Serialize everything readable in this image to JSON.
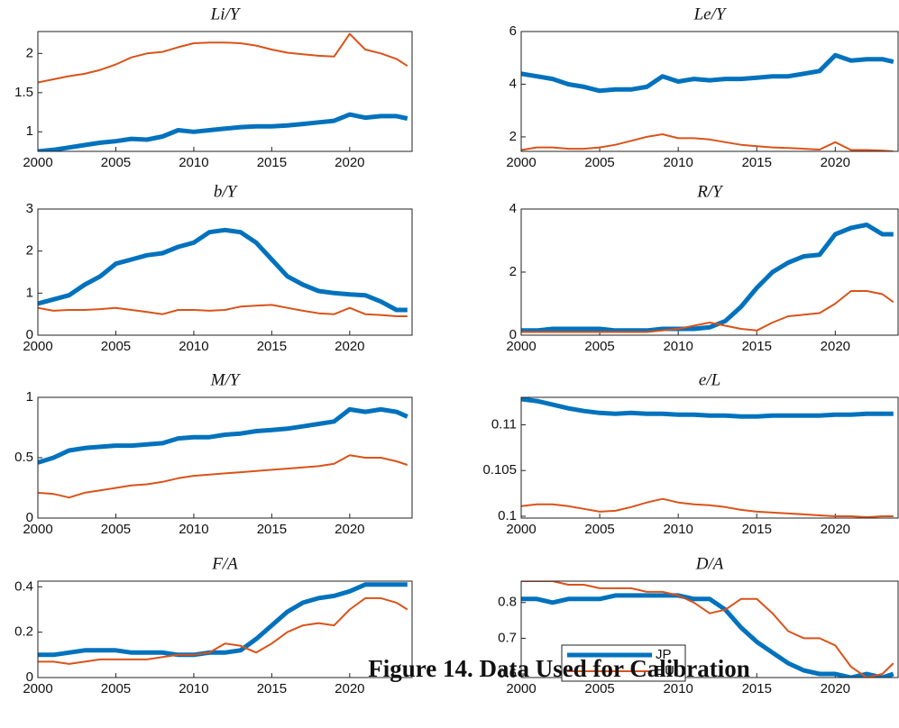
{
  "caption": "Figure 14. Data Used for Calibration",
  "chart_data": [
    {
      "type": "line",
      "title": "Li/Y",
      "xlim": [
        2000,
        2024
      ],
      "xticks": [
        2000,
        2005,
        2010,
        2015,
        2020
      ],
      "ylim": [
        0.75,
        2.28
      ],
      "yticks": [
        1,
        1.5,
        2
      ],
      "x": [
        2000,
        2001,
        2002,
        2003,
        2004,
        2005,
        2006,
        2007,
        2008,
        2009,
        2010,
        2011,
        2012,
        2013,
        2014,
        2015,
        2016,
        2017,
        2018,
        2019,
        2020,
        2021,
        2022,
        2023,
        2023.7
      ],
      "series": [
        {
          "name": "JP",
          "color": "#0072bd",
          "values": [
            0.75,
            0.77,
            0.8,
            0.83,
            0.86,
            0.88,
            0.91,
            0.9,
            0.94,
            1.02,
            1.0,
            1.02,
            1.04,
            1.06,
            1.07,
            1.07,
            1.08,
            1.1,
            1.12,
            1.14,
            1.22,
            1.18,
            1.2,
            1.2,
            1.17
          ]
        },
        {
          "name": "EU",
          "color": "#d95319",
          "values": [
            1.63,
            1.67,
            1.71,
            1.74,
            1.79,
            1.86,
            1.95,
            2.0,
            2.02,
            2.08,
            2.13,
            2.14,
            2.14,
            2.13,
            2.1,
            2.05,
            2.01,
            1.99,
            1.97,
            1.96,
            2.25,
            2.05,
            2.0,
            1.93,
            1.84
          ]
        }
      ]
    },
    {
      "type": "line",
      "title": "Le/Y",
      "xlim": [
        2000,
        2024
      ],
      "xticks": [
        2000,
        2005,
        2010,
        2015,
        2020
      ],
      "ylim": [
        1.45,
        6
      ],
      "yticks": [
        2,
        4,
        6
      ],
      "x": [
        2000,
        2001,
        2002,
        2003,
        2004,
        2005,
        2006,
        2007,
        2008,
        2009,
        2010,
        2011,
        2012,
        2013,
        2014,
        2015,
        2016,
        2017,
        2018,
        2019,
        2020,
        2021,
        2022,
        2023,
        2023.7
      ],
      "series": [
        {
          "name": "JP",
          "color": "#0072bd",
          "values": [
            4.4,
            4.3,
            4.2,
            4.0,
            3.9,
            3.75,
            3.8,
            3.8,
            3.9,
            4.3,
            4.1,
            4.2,
            4.15,
            4.2,
            4.2,
            4.25,
            4.3,
            4.3,
            4.4,
            4.5,
            5.1,
            4.9,
            4.95,
            4.95,
            4.85
          ]
        },
        {
          "name": "EU",
          "color": "#d95319",
          "values": [
            1.5,
            1.6,
            1.6,
            1.55,
            1.55,
            1.6,
            1.7,
            1.85,
            2.0,
            2.1,
            1.95,
            1.95,
            1.9,
            1.8,
            1.7,
            1.65,
            1.6,
            1.58,
            1.55,
            1.52,
            1.8,
            1.5,
            1.5,
            1.48,
            1.45
          ]
        }
      ]
    },
    {
      "type": "line",
      "title": "b/Y",
      "xlim": [
        2000,
        2024
      ],
      "xticks": [
        2000,
        2005,
        2010,
        2015,
        2020
      ],
      "ylim": [
        0,
        3
      ],
      "yticks": [
        0,
        1,
        2,
        3
      ],
      "x": [
        2000,
        2001,
        2002,
        2003,
        2004,
        2005,
        2006,
        2007,
        2008,
        2009,
        2010,
        2011,
        2012,
        2013,
        2014,
        2015,
        2016,
        2017,
        2018,
        2019,
        2020,
        2021,
        2022,
        2023,
        2023.7
      ],
      "series": [
        {
          "name": "JP",
          "color": "#0072bd",
          "values": [
            0.75,
            0.85,
            0.95,
            1.2,
            1.4,
            1.7,
            1.8,
            1.9,
            1.95,
            2.1,
            2.2,
            2.45,
            2.5,
            2.45,
            2.2,
            1.8,
            1.4,
            1.2,
            1.05,
            1.0,
            0.97,
            0.95,
            0.8,
            0.6,
            0.6
          ]
        },
        {
          "name": "EU",
          "color": "#d95319",
          "values": [
            0.65,
            0.58,
            0.6,
            0.6,
            0.62,
            0.65,
            0.6,
            0.55,
            0.5,
            0.6,
            0.6,
            0.58,
            0.6,
            0.68,
            0.7,
            0.72,
            0.65,
            0.58,
            0.52,
            0.5,
            0.65,
            0.5,
            0.48,
            0.45,
            0.45
          ]
        }
      ]
    },
    {
      "type": "line",
      "title": "R/Y",
      "xlim": [
        2000,
        2024
      ],
      "xticks": [
        2000,
        2005,
        2010,
        2015,
        2020
      ],
      "ylim": [
        0,
        4
      ],
      "yticks": [
        0,
        2,
        4
      ],
      "x": [
        2000,
        2001,
        2002,
        2003,
        2004,
        2005,
        2006,
        2007,
        2008,
        2009,
        2010,
        2011,
        2012,
        2013,
        2014,
        2015,
        2016,
        2017,
        2018,
        2019,
        2020,
        2021,
        2022,
        2023,
        2023.7
      ],
      "series": [
        {
          "name": "JP",
          "color": "#0072bd",
          "values": [
            0.15,
            0.15,
            0.2,
            0.2,
            0.2,
            0.2,
            0.15,
            0.15,
            0.15,
            0.2,
            0.2,
            0.2,
            0.25,
            0.45,
            0.9,
            1.5,
            2.0,
            2.3,
            2.5,
            2.55,
            3.2,
            3.4,
            3.5,
            3.2,
            3.2
          ]
        },
        {
          "name": "EU",
          "color": "#d95319",
          "values": [
            0.1,
            0.1,
            0.1,
            0.1,
            0.1,
            0.1,
            0.1,
            0.1,
            0.1,
            0.15,
            0.2,
            0.3,
            0.4,
            0.3,
            0.2,
            0.15,
            0.4,
            0.6,
            0.65,
            0.7,
            1.0,
            1.4,
            1.4,
            1.3,
            1.05
          ]
        }
      ]
    },
    {
      "type": "line",
      "title": "M/Y",
      "xlim": [
        2000,
        2024
      ],
      "xticks": [
        2000,
        2005,
        2010,
        2015,
        2020
      ],
      "ylim": [
        0,
        1
      ],
      "yticks": [
        0,
        0.5,
        1
      ],
      "x": [
        2000,
        2001,
        2002,
        2003,
        2004,
        2005,
        2006,
        2007,
        2008,
        2009,
        2010,
        2011,
        2012,
        2013,
        2014,
        2015,
        2016,
        2017,
        2018,
        2019,
        2020,
        2021,
        2022,
        2023,
        2023.7
      ],
      "series": [
        {
          "name": "JP",
          "color": "#0072bd",
          "values": [
            0.46,
            0.5,
            0.56,
            0.58,
            0.59,
            0.6,
            0.6,
            0.61,
            0.62,
            0.66,
            0.67,
            0.67,
            0.69,
            0.7,
            0.72,
            0.73,
            0.74,
            0.76,
            0.78,
            0.8,
            0.9,
            0.88,
            0.9,
            0.88,
            0.84
          ]
        },
        {
          "name": "EU",
          "color": "#d95319",
          "values": [
            0.21,
            0.2,
            0.17,
            0.21,
            0.23,
            0.25,
            0.27,
            0.28,
            0.3,
            0.33,
            0.35,
            0.36,
            0.37,
            0.38,
            0.39,
            0.4,
            0.41,
            0.42,
            0.43,
            0.45,
            0.52,
            0.5,
            0.5,
            0.47,
            0.44
          ]
        }
      ]
    },
    {
      "type": "line",
      "title": "e/L",
      "xlim": [
        2000,
        2024
      ],
      "xticks": [
        2000,
        2005,
        2010,
        2015,
        2020
      ],
      "ylim": [
        0.0998,
        0.113
      ],
      "yticks": [
        0.1,
        0.105,
        0.11
      ],
      "x": [
        2000,
        2001,
        2002,
        2003,
        2004,
        2005,
        2006,
        2007,
        2008,
        2009,
        2010,
        2011,
        2012,
        2013,
        2014,
        2015,
        2016,
        2017,
        2018,
        2019,
        2020,
        2021,
        2022,
        2023,
        2023.7
      ],
      "series": [
        {
          "name": "JP",
          "color": "#0072bd",
          "values": [
            0.1128,
            0.1126,
            0.1122,
            0.1118,
            0.1115,
            0.1113,
            0.1112,
            0.1113,
            0.1112,
            0.1112,
            0.1111,
            0.1111,
            0.111,
            0.111,
            0.1109,
            0.1109,
            0.111,
            0.111,
            0.111,
            0.111,
            0.1111,
            0.1111,
            0.1112,
            0.1112,
            0.1112
          ]
        },
        {
          "name": "EU",
          "color": "#d95319",
          "values": [
            0.1011,
            0.1013,
            0.1013,
            0.1011,
            0.1008,
            0.1005,
            0.1006,
            0.101,
            0.1015,
            0.1019,
            0.1015,
            0.1013,
            0.1012,
            0.101,
            0.1007,
            0.1005,
            0.1004,
            0.1003,
            0.1002,
            0.1001,
            0.1,
            0.1,
            0.0999,
            0.1,
            0.1
          ]
        }
      ]
    },
    {
      "type": "line",
      "title": "F/A",
      "xlim": [
        2000,
        2024
      ],
      "xticks": [
        2000,
        2005,
        2010,
        2015,
        2020
      ],
      "ylim": [
        0,
        0.425
      ],
      "yticks": [
        0,
        0.2,
        0.4
      ],
      "x": [
        2000,
        2001,
        2002,
        2003,
        2004,
        2005,
        2006,
        2007,
        2008,
        2009,
        2010,
        2011,
        2012,
        2013,
        2014,
        2015,
        2016,
        2017,
        2018,
        2019,
        2020,
        2021,
        2022,
        2023,
        2023.7
      ],
      "series": [
        {
          "name": "JP",
          "color": "#0072bd",
          "values": [
            0.1,
            0.1,
            0.11,
            0.12,
            0.12,
            0.12,
            0.11,
            0.11,
            0.11,
            0.1,
            0.1,
            0.11,
            0.11,
            0.12,
            0.17,
            0.23,
            0.29,
            0.33,
            0.35,
            0.36,
            0.38,
            0.41,
            0.41,
            0.41,
            0.41
          ]
        },
        {
          "name": "EU",
          "color": "#d95319",
          "values": [
            0.07,
            0.07,
            0.06,
            0.07,
            0.08,
            0.08,
            0.08,
            0.08,
            0.09,
            0.1,
            0.1,
            0.11,
            0.15,
            0.14,
            0.11,
            0.15,
            0.2,
            0.23,
            0.24,
            0.23,
            0.3,
            0.35,
            0.35,
            0.33,
            0.3
          ]
        }
      ]
    },
    {
      "type": "line",
      "title": "D/A",
      "xlim": [
        2000,
        2024
      ],
      "xticks": [
        2000,
        2005,
        2010,
        2015,
        2020
      ],
      "ylim": [
        0.59,
        0.86
      ],
      "yticks": [
        0.6,
        0.7,
        0.8
      ],
      "legend": "lower left",
      "x": [
        2000,
        2001,
        2002,
        2003,
        2004,
        2005,
        2006,
        2007,
        2008,
        2009,
        2010,
        2011,
        2012,
        2013,
        2014,
        2015,
        2016,
        2017,
        2018,
        2019,
        2020,
        2021,
        2022,
        2023,
        2023.7
      ],
      "series": [
        {
          "name": "JP",
          "color": "#0072bd",
          "values": [
            0.81,
            0.81,
            0.8,
            0.81,
            0.81,
            0.81,
            0.82,
            0.82,
            0.82,
            0.82,
            0.82,
            0.81,
            0.81,
            0.78,
            0.73,
            0.69,
            0.66,
            0.63,
            0.61,
            0.6,
            0.6,
            0.59,
            0.6,
            0.59,
            0.6
          ]
        },
        {
          "name": "EU",
          "color": "#d95319",
          "values": [
            0.86,
            0.86,
            0.86,
            0.85,
            0.85,
            0.84,
            0.84,
            0.84,
            0.83,
            0.83,
            0.82,
            0.8,
            0.77,
            0.78,
            0.81,
            0.81,
            0.77,
            0.72,
            0.7,
            0.7,
            0.68,
            0.62,
            0.59,
            0.6,
            0.63
          ]
        }
      ]
    }
  ]
}
